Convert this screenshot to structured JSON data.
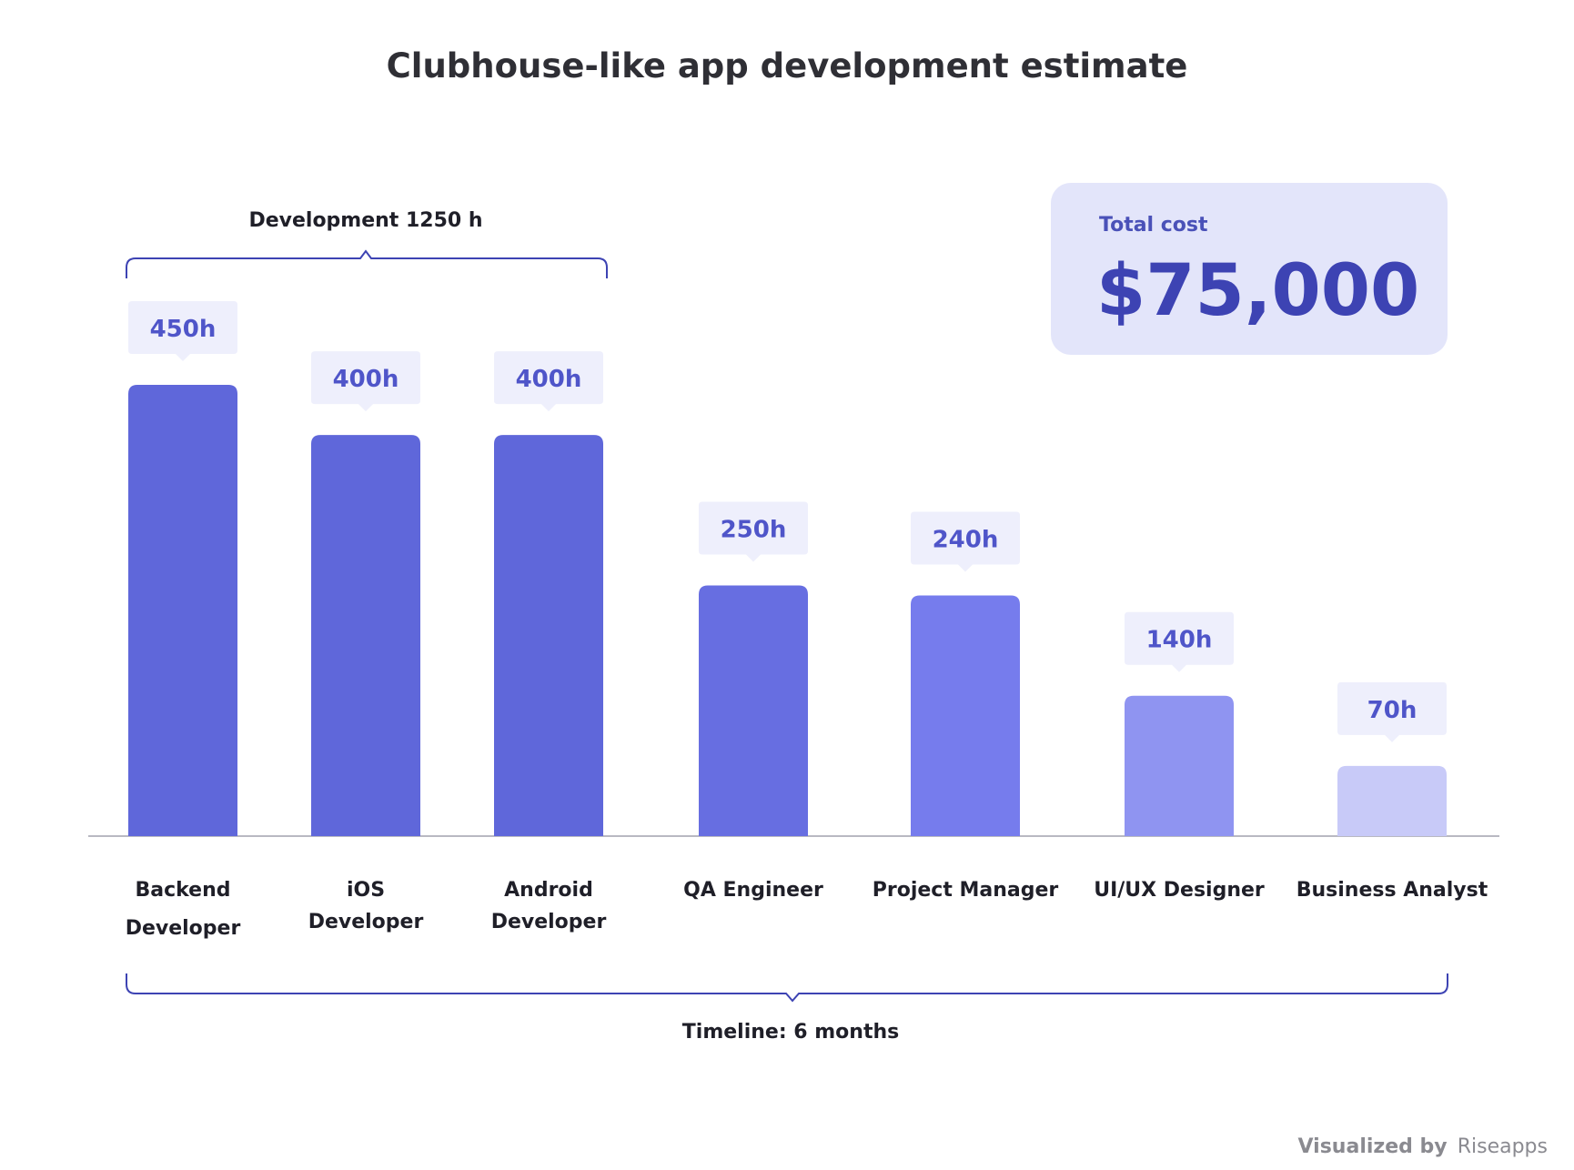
{
  "chart_data": {
    "type": "bar",
    "title": "Clubhouse-like app development estimate",
    "categories": [
      "Backend Developer",
      "iOS Developer",
      "Android Developer",
      "QA Engineer",
      "Project Manager",
      "UI/UX Designer",
      "Business Analyst"
    ],
    "category_lines": [
      [
        "Backend",
        "Developer"
      ],
      [
        "iOS",
        "Developer"
      ],
      [
        "Android",
        "Developer"
      ],
      [
        "QA Engineer"
      ],
      [
        "Project Manager"
      ],
      [
        "UI/UX Designer"
      ],
      [
        "Business Analyst"
      ]
    ],
    "values": [
      450,
      400,
      400,
      250,
      240,
      140,
      70
    ],
    "value_labels": [
      "450h",
      "400h",
      "400h",
      "250h",
      "240h",
      "140h",
      "70h"
    ],
    "unit": "h",
    "ylim": [
      0,
      450
    ],
    "grid": false,
    "bar_colors": [
      "#5f67da",
      "#5f67da",
      "#5f67da",
      "#676ee1",
      "#767ced",
      "#8f94f1",
      "#c8caf8"
    ],
    "label_bg_color": "#eeeffc",
    "accent_color": "#3d43b3",
    "development_bracket_label": "Development 1250 h",
    "timeline_label": "Timeline: 6 months",
    "total_cost_label": "Total cost",
    "total_cost_value": "$75,000",
    "credit_prefix": "Visualized by",
    "credit_brand": "Riseapps"
  }
}
